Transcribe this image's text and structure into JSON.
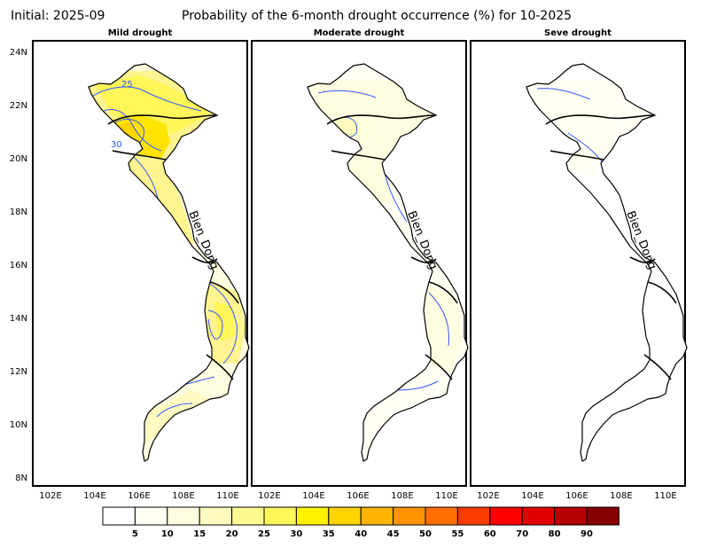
{
  "header": {
    "initial": "Initial: 2025-09",
    "title": "Probability of the 6-month drought occurrence (%) for 10-2025"
  },
  "panels": [
    {
      "title": "Mild drought",
      "sea_label": "Bien_Dong",
      "contour_labels": [
        "25",
        "30"
      ]
    },
    {
      "title": "Moderate drought",
      "sea_label": "Bien_Dong"
    },
    {
      "title": "Seve drought",
      "sea_label": "Bien_Dong"
    }
  ],
  "axes": {
    "lon_ticks": [
      "102E",
      "104E",
      "106E",
      "108E",
      "110E"
    ],
    "lat_ticks": [
      "24N",
      "22N",
      "20N",
      "18N",
      "16N",
      "14N",
      "12N",
      "10N",
      "8N"
    ]
  },
  "colorbar": {
    "labels": [
      "5",
      "10",
      "15",
      "20",
      "25",
      "30",
      "35",
      "40",
      "45",
      "50",
      "55",
      "60",
      "70",
      "80",
      "90"
    ],
    "colors": [
      "#ffffff",
      "#fffff4",
      "#fffde0",
      "#fffbc0",
      "#fffa90",
      "#fff65a",
      "#fff200",
      "#ffd400",
      "#ffb400",
      "#ff9400",
      "#ff6e00",
      "#ff3c00",
      "#ff0000",
      "#e00000",
      "#b40000",
      "#840000"
    ]
  },
  "colors": {
    "contour": "#3355ff",
    "boundary": "#000000"
  }
}
